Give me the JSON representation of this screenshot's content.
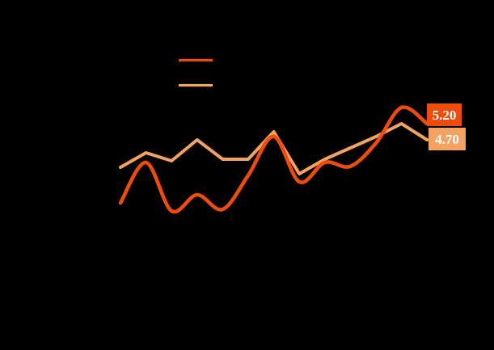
{
  "canvas": {
    "background": "#000000"
  },
  "legend": {
    "swatches": [
      {
        "name": "dark-orange-line-swatch",
        "color": "#ED4C0C"
      },
      {
        "name": "light-orange-line-swatch",
        "color": "#F4A262"
      }
    ]
  },
  "annotations": {
    "text_color": "#FFFFFF"
  },
  "chart_data": {
    "type": "line",
    "x": [
      1,
      2,
      3,
      4,
      5,
      6,
      7,
      8,
      9,
      10,
      11,
      12,
      13
    ],
    "series": [
      {
        "name": "series-dark-orange",
        "color": "#ED4C0C",
        "line_style": "smooth-spline",
        "end_label": "5.20",
        "end_label_bg": "#ED4C0C",
        "values": [
          2.75,
          4.0,
          2.5,
          3.0,
          2.55,
          3.6,
          4.8,
          3.4,
          4.0,
          3.88,
          4.6,
          5.7,
          5.2
        ]
      },
      {
        "name": "series-light-orange",
        "color": "#F4A262",
        "line_style": "straight-segments",
        "end_label": "4.70",
        "end_label_bg": "#F4A262",
        "values": [
          3.85,
          4.3,
          4.05,
          4.7,
          4.1,
          4.1,
          4.95,
          3.65,
          4.1,
          4.45,
          4.8,
          5.2,
          4.7
        ]
      }
    ],
    "title": "",
    "xlabel": "",
    "ylabel": "",
    "ylim": [
      2.3,
      5.9
    ],
    "grid": false,
    "legend_position": "upper-center-left",
    "axis_tick_text_visible": false
  }
}
